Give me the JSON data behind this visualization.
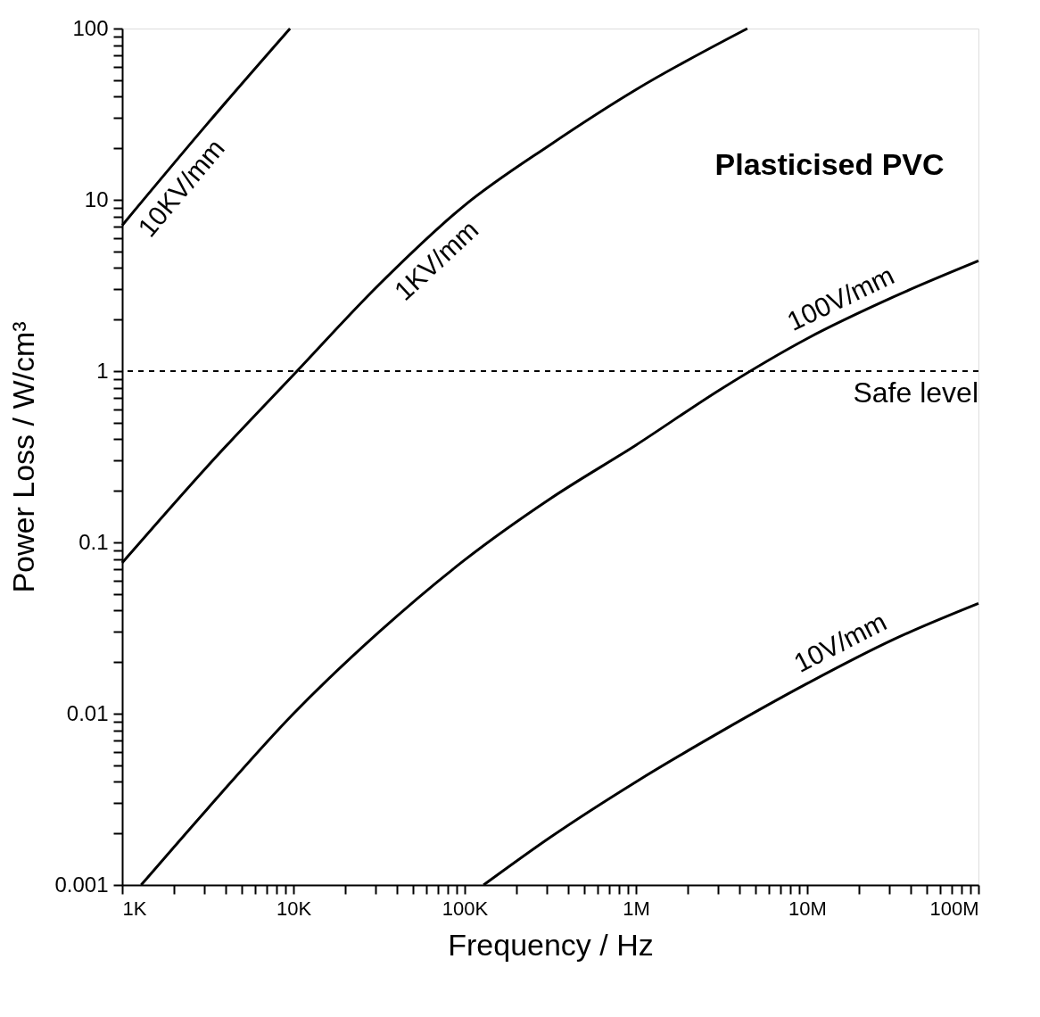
{
  "chart_data": {
    "type": "line",
    "xlabel": "Frequency /  Hz",
    "ylabel": "Power Loss /  W/cm³",
    "log": "xy",
    "grid": false,
    "marker": "none",
    "line_style": "solid",
    "xlim": [
      1000,
      100000000
    ],
    "ylim": [
      0.001,
      100
    ],
    "xticks": [
      {
        "value": 1000,
        "label": "1K"
      },
      {
        "value": 2000,
        "label": null
      },
      {
        "value": 3000,
        "label": null
      },
      {
        "value": 4000,
        "label": null
      },
      {
        "value": 5000,
        "label": null
      },
      {
        "value": 6000,
        "label": null
      },
      {
        "value": 7000,
        "label": null
      },
      {
        "value": 8000,
        "label": null
      },
      {
        "value": 9000,
        "label": null
      },
      {
        "value": 10000,
        "label": "10K"
      },
      {
        "value": 20000,
        "label": null
      },
      {
        "value": 30000,
        "label": null
      },
      {
        "value": 40000,
        "label": null
      },
      {
        "value": 50000,
        "label": null
      },
      {
        "value": 60000,
        "label": null
      },
      {
        "value": 70000,
        "label": null
      },
      {
        "value": 80000,
        "label": null
      },
      {
        "value": 90000,
        "label": null
      },
      {
        "value": 100000,
        "label": "100K"
      },
      {
        "value": 200000,
        "label": null
      },
      {
        "value": 300000,
        "label": null
      },
      {
        "value": 400000,
        "label": null
      },
      {
        "value": 500000,
        "label": null
      },
      {
        "value": 600000,
        "label": null
      },
      {
        "value": 700000,
        "label": null
      },
      {
        "value": 800000,
        "label": null
      },
      {
        "value": 900000,
        "label": null
      },
      {
        "value": 1000000,
        "label": "1M"
      },
      {
        "value": 2000000,
        "label": null
      },
      {
        "value": 3000000,
        "label": null
      },
      {
        "value": 4000000,
        "label": null
      },
      {
        "value": 5000000,
        "label": null
      },
      {
        "value": 6000000,
        "label": null
      },
      {
        "value": 7000000,
        "label": null
      },
      {
        "value": 8000000,
        "label": null
      },
      {
        "value": 9000000,
        "label": null
      },
      {
        "value": 10000000,
        "label": "10M"
      },
      {
        "value": 20000000,
        "label": null
      },
      {
        "value": 30000000,
        "label": null
      },
      {
        "value": 40000000,
        "label": null
      },
      {
        "value": 50000000,
        "label": null
      },
      {
        "value": 60000000,
        "label": null
      },
      {
        "value": 70000000,
        "label": null
      },
      {
        "value": 80000000,
        "label": null
      },
      {
        "value": 90000000,
        "label": null
      },
      {
        "value": 100000000,
        "label": "100M"
      }
    ],
    "yticks": [
      0.001,
      {
        "value": 0.002,
        "label": null
      },
      {
        "value": 0.003,
        "label": null
      },
      {
        "value": 0.004,
        "label": null
      },
      {
        "value": 0.005,
        "label": null
      },
      {
        "value": 0.006,
        "label": null
      },
      {
        "value": 0.007,
        "label": null
      },
      {
        "value": 0.008,
        "label": null
      },
      {
        "value": 0.009,
        "label": null
      },
      0.01,
      {
        "value": 0.02,
        "label": null
      },
      {
        "value": 0.03,
        "label": null
      },
      {
        "value": 0.04,
        "label": null
      },
      {
        "value": 0.05,
        "label": null
      },
      {
        "value": 0.06,
        "label": null
      },
      {
        "value": 0.07,
        "label": null
      },
      {
        "value": 0.08,
        "label": null
      },
      {
        "value": 0.09,
        "label": null
      },
      0.1,
      {
        "value": 0.2,
        "label": null
      },
      {
        "value": 0.3,
        "label": null
      },
      {
        "value": 0.4,
        "label": null
      },
      {
        "value": 0.5,
        "label": null
      },
      {
        "value": 0.6,
        "label": null
      },
      {
        "value": 0.7,
        "label": null
      },
      {
        "value": 0.8,
        "label": null
      },
      {
        "value": 0.9,
        "label": null
      },
      1,
      {
        "value": 2,
        "label": null
      },
      {
        "value": 3,
        "label": null
      },
      {
        "value": 4,
        "label": null
      },
      {
        "value": 5,
        "label": null
      },
      {
        "value": 6,
        "label": null
      },
      {
        "value": 7,
        "label": null
      },
      {
        "value": 8,
        "label": null
      },
      {
        "value": 9,
        "label": null
      },
      10,
      {
        "value": 20,
        "label": null
      },
      {
        "value": 30,
        "label": null
      },
      {
        "value": 40,
        "label": null
      },
      {
        "value": 50,
        "label": null
      },
      {
        "value": 60,
        "label": null
      },
      {
        "value": 70,
        "label": null
      },
      {
        "value": 80,
        "label": null
      },
      {
        "value": 90,
        "label": null
      },
      100
    ],
    "series": [
      {
        "name": "10KV/mm",
        "color": "#000000",
        "x": [
          1000,
          3162,
          9550
        ],
        "values": [
          7.1,
          28,
          100
        ]
      },
      {
        "name": "1KV/mm",
        "color": "#000000",
        "x": [
          1000,
          3162,
          10000,
          31623,
          100000,
          316228,
          1000000,
          4470000
        ],
        "values": [
          0.076,
          0.28,
          0.95,
          3.2,
          9.3,
          21,
          44,
          100
        ]
      },
      {
        "name": "100V/mm",
        "color": "#000000",
        "x": [
          1290,
          3162,
          10000,
          31623,
          100000,
          316228,
          1000000,
          3162278,
          10000000,
          31622777,
          100000000
        ],
        "values": [
          0.001,
          0.0028,
          0.01,
          0.03,
          0.079,
          0.18,
          0.37,
          0.79,
          1.55,
          2.7,
          4.4
        ]
      },
      {
        "name": "10V/mm",
        "color": "#000000",
        "x": [
          128825,
          316228,
          1000000,
          3162278,
          10000000,
          31622777,
          100000000
        ],
        "values": [
          0.001,
          0.0019,
          0.004,
          0.0079,
          0.015,
          0.027,
          0.044
        ]
      }
    ],
    "ref_lines": [
      {
        "axis": "y",
        "value": 1,
        "label": "Safe level",
        "color": "#000000",
        "line_style": "dashed"
      }
    ],
    "annotations": [
      "Plasticised PVC"
    ]
  }
}
